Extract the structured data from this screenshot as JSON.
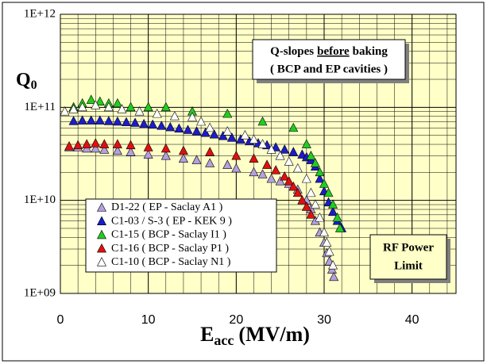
{
  "chart_data": {
    "type": "scatter",
    "y_label": "Q",
    "y_label_sub": "0",
    "x_label": "E",
    "x_label_sub": "acc",
    "x_label_unit": "(MV/m)",
    "annotation_box": {
      "line1_pre": "Q-slopes",
      "line1_underlined": "before",
      "line1_post": "baking",
      "line2": "( BCP and EP cavities )"
    },
    "limit_box": {
      "line1": "RF Power",
      "line2": "Limit"
    },
    "xlim": [
      0,
      45
    ],
    "xticks": [
      0,
      10,
      20,
      30,
      40
    ],
    "ylim": [
      1000000000,
      1000000000000
    ],
    "log_y": true,
    "yticks": [
      {
        "value": 1000000000,
        "label": "1E+09"
      },
      {
        "value": 10000000000,
        "label": "1E+10"
      },
      {
        "value": 100000000000,
        "label": "1E+11"
      },
      {
        "value": 1000000000000,
        "label": "1E+12"
      }
    ],
    "grid": true,
    "minor_grid": true,
    "legend": "left",
    "background": "#ffffc8",
    "series": [
      {
        "name": "D1-22 ( EP - Saclay A1 )",
        "color": "#b4a0dc",
        "x": [
          1,
          2,
          3,
          4,
          5,
          6.5,
          8,
          10,
          12,
          14,
          15.5,
          17,
          19,
          20,
          22,
          23,
          24,
          25,
          26,
          27,
          28,
          28.5,
          29,
          29.5,
          30,
          30.3,
          30.6,
          30.9,
          31.1
        ],
        "values": [
          37000000000,
          37000000000,
          36000000000,
          36000000000,
          35000000000,
          34000000000,
          33000000000,
          31000000000,
          30000000000,
          28000000000,
          27000000000,
          25000000000,
          24000000000,
          22000000000,
          20000000000,
          19000000000,
          17000000000,
          16000000000,
          15000000000,
          13000000000,
          10000000000,
          8000000000,
          6000000000,
          4500000000,
          3500000000,
          2700000000,
          2200000000,
          1800000000,
          1500000000
        ]
      },
      {
        "name": "C1-03 / S-3 ( EP - KEK 9 )",
        "color": "#1c1ccc",
        "x": [
          1.5,
          2.5,
          3.5,
          4.5,
          5.5,
          6.5,
          7.5,
          8.5,
          9.5,
          10.5,
          11.5,
          12.5,
          13.5,
          14.5,
          15.5,
          16.5,
          17.5,
          18.5,
          19.5,
          20.5,
          21.5,
          22.5,
          23.5,
          24.5,
          25.5,
          26.5,
          27.5,
          28,
          28.5,
          29,
          29.5,
          30,
          30.5,
          31,
          31.5,
          32
        ],
        "values": [
          71000000000,
          72000000000,
          72000000000,
          72000000000,
          71000000000,
          70000000000,
          69000000000,
          68000000000,
          66000000000,
          65000000000,
          63000000000,
          61000000000,
          59000000000,
          57000000000,
          55000000000,
          53000000000,
          51000000000,
          49000000000,
          47000000000,
          45000000000,
          43000000000,
          41000000000,
          39000000000,
          37000000000,
          35000000000,
          33000000000,
          31000000000,
          29000000000,
          27000000000,
          23000000000,
          17000000000,
          12500000000,
          9500000000,
          7500000000,
          6000000000,
          5000000000
        ]
      },
      {
        "name": "C1-15 ( BCP - Saclay I1 )",
        "color": "#22cc22",
        "x": [
          1.5,
          2.5,
          3.5,
          4.5,
          5.5,
          6.5,
          8,
          10,
          12,
          15,
          19,
          23,
          26.5,
          28,
          28.5,
          29,
          29.5,
          30,
          30.5,
          31,
          31.5,
          31.8
        ],
        "values": [
          100000000000,
          110000000000,
          120000000000,
          115000000000,
          110000000000,
          110000000000,
          100000000000,
          100000000000,
          100000000000,
          90000000000,
          85000000000,
          70000000000,
          60000000000,
          40000000000,
          30000000000,
          25000000000,
          20000000000,
          15000000000,
          12000000000,
          9000000000,
          6500000000,
          5000000000
        ]
      },
      {
        "name": "C1-16 ( BCP - Saclay P1 )",
        "color": "#e01010",
        "x": [
          1,
          2,
          3,
          4,
          5,
          6.5,
          8,
          10,
          12,
          14,
          17,
          20,
          22,
          23.5,
          24.5,
          25.5,
          26,
          26.5,
          27,
          27.5,
          28,
          28.5
        ],
        "values": [
          38000000000,
          39000000000,
          40000000000,
          41000000000,
          40000000000,
          40000000000,
          39000000000,
          37000000000,
          36000000000,
          34000000000,
          33000000000,
          30000000000,
          28000000000,
          24000000000,
          21000000000,
          18000000000,
          16000000000,
          14000000000,
          12000000000,
          10000000000,
          8500000000,
          7000000000
        ]
      },
      {
        "name": "C1-10 ( BCP - Saclay N1 )",
        "color": "#ffffff",
        "x": [
          0.5,
          1.5,
          2.5,
          4,
          5.5,
          7,
          9,
          11,
          13,
          15,
          16,
          17,
          19,
          21,
          22,
          23,
          24,
          25,
          26,
          27,
          28,
          28.5,
          29,
          29.5,
          30,
          30.3,
          30.6,
          31
        ],
        "values": [
          90000000000,
          95000000000,
          100000000000,
          105000000000,
          100000000000,
          95000000000,
          90000000000,
          85000000000,
          80000000000,
          78000000000,
          70000000000,
          60000000000,
          55000000000,
          50000000000,
          45000000000,
          40000000000,
          35000000000,
          30000000000,
          26000000000,
          22000000000,
          17000000000,
          12000000000,
          9000000000,
          6500000000,
          4500000000,
          3500000000,
          2800000000,
          2000000000
        ]
      }
    ]
  }
}
